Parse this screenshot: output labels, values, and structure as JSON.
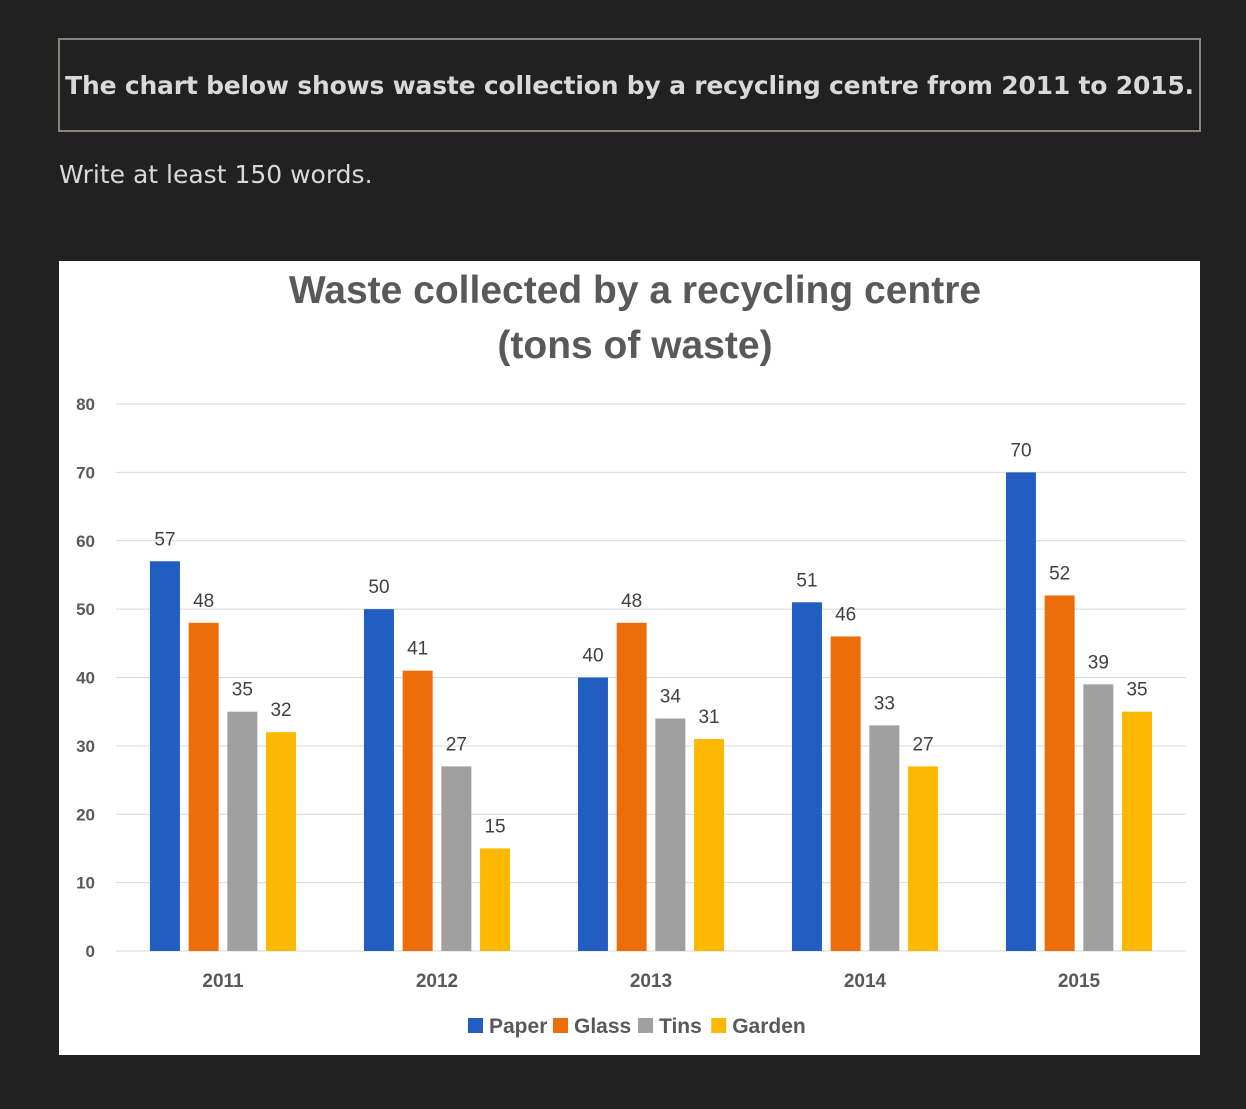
{
  "header": {
    "prompt": "The chart below shows waste collection by a recycling centre from 2011 to 2015.",
    "instruction": "Write at least 150 words."
  },
  "chart_data": {
    "type": "bar",
    "title_lines": [
      "Waste collected by a recycling centre",
      "(tons of waste)"
    ],
    "categories": [
      "2011",
      "2012",
      "2013",
      "2014",
      "2015"
    ],
    "series": [
      {
        "name": "Paper",
        "color": "#225ec2",
        "values": [
          57,
          50,
          40,
          51,
          70
        ]
      },
      {
        "name": "Glass",
        "color": "#ed6d09",
        "values": [
          48,
          41,
          48,
          46,
          52
        ]
      },
      {
        "name": "Tins",
        "color": "#a0a0a0",
        "values": [
          35,
          27,
          34,
          33,
          39
        ]
      },
      {
        "name": "Garden",
        "color": "#fdb901",
        "values": [
          32,
          15,
          31,
          27,
          35
        ]
      }
    ],
    "ylim": [
      0,
      80
    ],
    "yticks": [
      0,
      10,
      20,
      30,
      40,
      50,
      60,
      70,
      80
    ],
    "grid": true,
    "data_labels": true,
    "legend_position": "bottom"
  }
}
